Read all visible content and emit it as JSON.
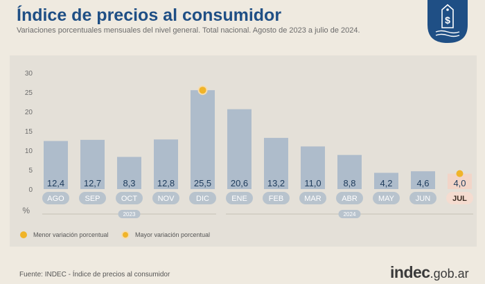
{
  "header": {
    "title": "Índice de precios al consumidor",
    "subtitle": "Variaciones porcentuales mensuales del nivel general. Total nacional. Agosto de 2023 a julio de 2024."
  },
  "footer": {
    "source": "Fuente: INDEC - Índice de precios al consumidor",
    "logo_main": "indec",
    "logo_suffix": ".gob.ar"
  },
  "colors": {
    "bar": "#aebccb",
    "bar_highlight": "#f2d5c8",
    "value_text": "#1e3b5b",
    "category_pill": "#b8c3cd",
    "category_text": "#ffffff",
    "category_highlight_pill": "#f5dcd0",
    "category_highlight_text": "#3a2a20",
    "marker_min": "#f0b429",
    "marker_max": "#f0b429",
    "title": "#1f4f85",
    "background": "#efeae0",
    "panel": "#e4e0d8"
  },
  "chart_data": {
    "type": "bar",
    "title": "Índice de precios al consumidor",
    "subtitle": "Variaciones porcentuales mensuales del nivel general. Total nacional. Agosto de 2023 a julio de 2024.",
    "categories": [
      "AGO",
      "SEP",
      "OCT",
      "NOV",
      "DIC",
      "ENE",
      "FEB",
      "MAR",
      "ABR",
      "MAY",
      "JUN",
      "JUL"
    ],
    "values": [
      12.4,
      12.7,
      8.3,
      12.8,
      25.5,
      20.6,
      13.2,
      11.0,
      8.8,
      4.2,
      4.6,
      4.0
    ],
    "value_labels": [
      "12,4",
      "12,7",
      "8,3",
      "12,8",
      "25,5",
      "20,6",
      "13,2",
      "11,0",
      "8,8",
      "4,2",
      "4,6",
      "4,0"
    ],
    "ylabel": "%",
    "ylim": [
      0,
      30
    ],
    "yticks": [
      0,
      5,
      10,
      15,
      20,
      25,
      30
    ],
    "year_groups": [
      {
        "label": "2023",
        "start": 0,
        "end": 4
      },
      {
        "label": "2024",
        "start": 5,
        "end": 11
      }
    ],
    "highlight_index": 11,
    "markers": [
      {
        "index": 11,
        "kind": "min"
      },
      {
        "index": 4,
        "kind": "max"
      }
    ],
    "legend": [
      {
        "kind": "min",
        "label": "Menor variación porcentual"
      },
      {
        "kind": "max",
        "label": "Mayor variación porcentual"
      }
    ],
    "legend_position": "bottom-left",
    "grid": false
  }
}
